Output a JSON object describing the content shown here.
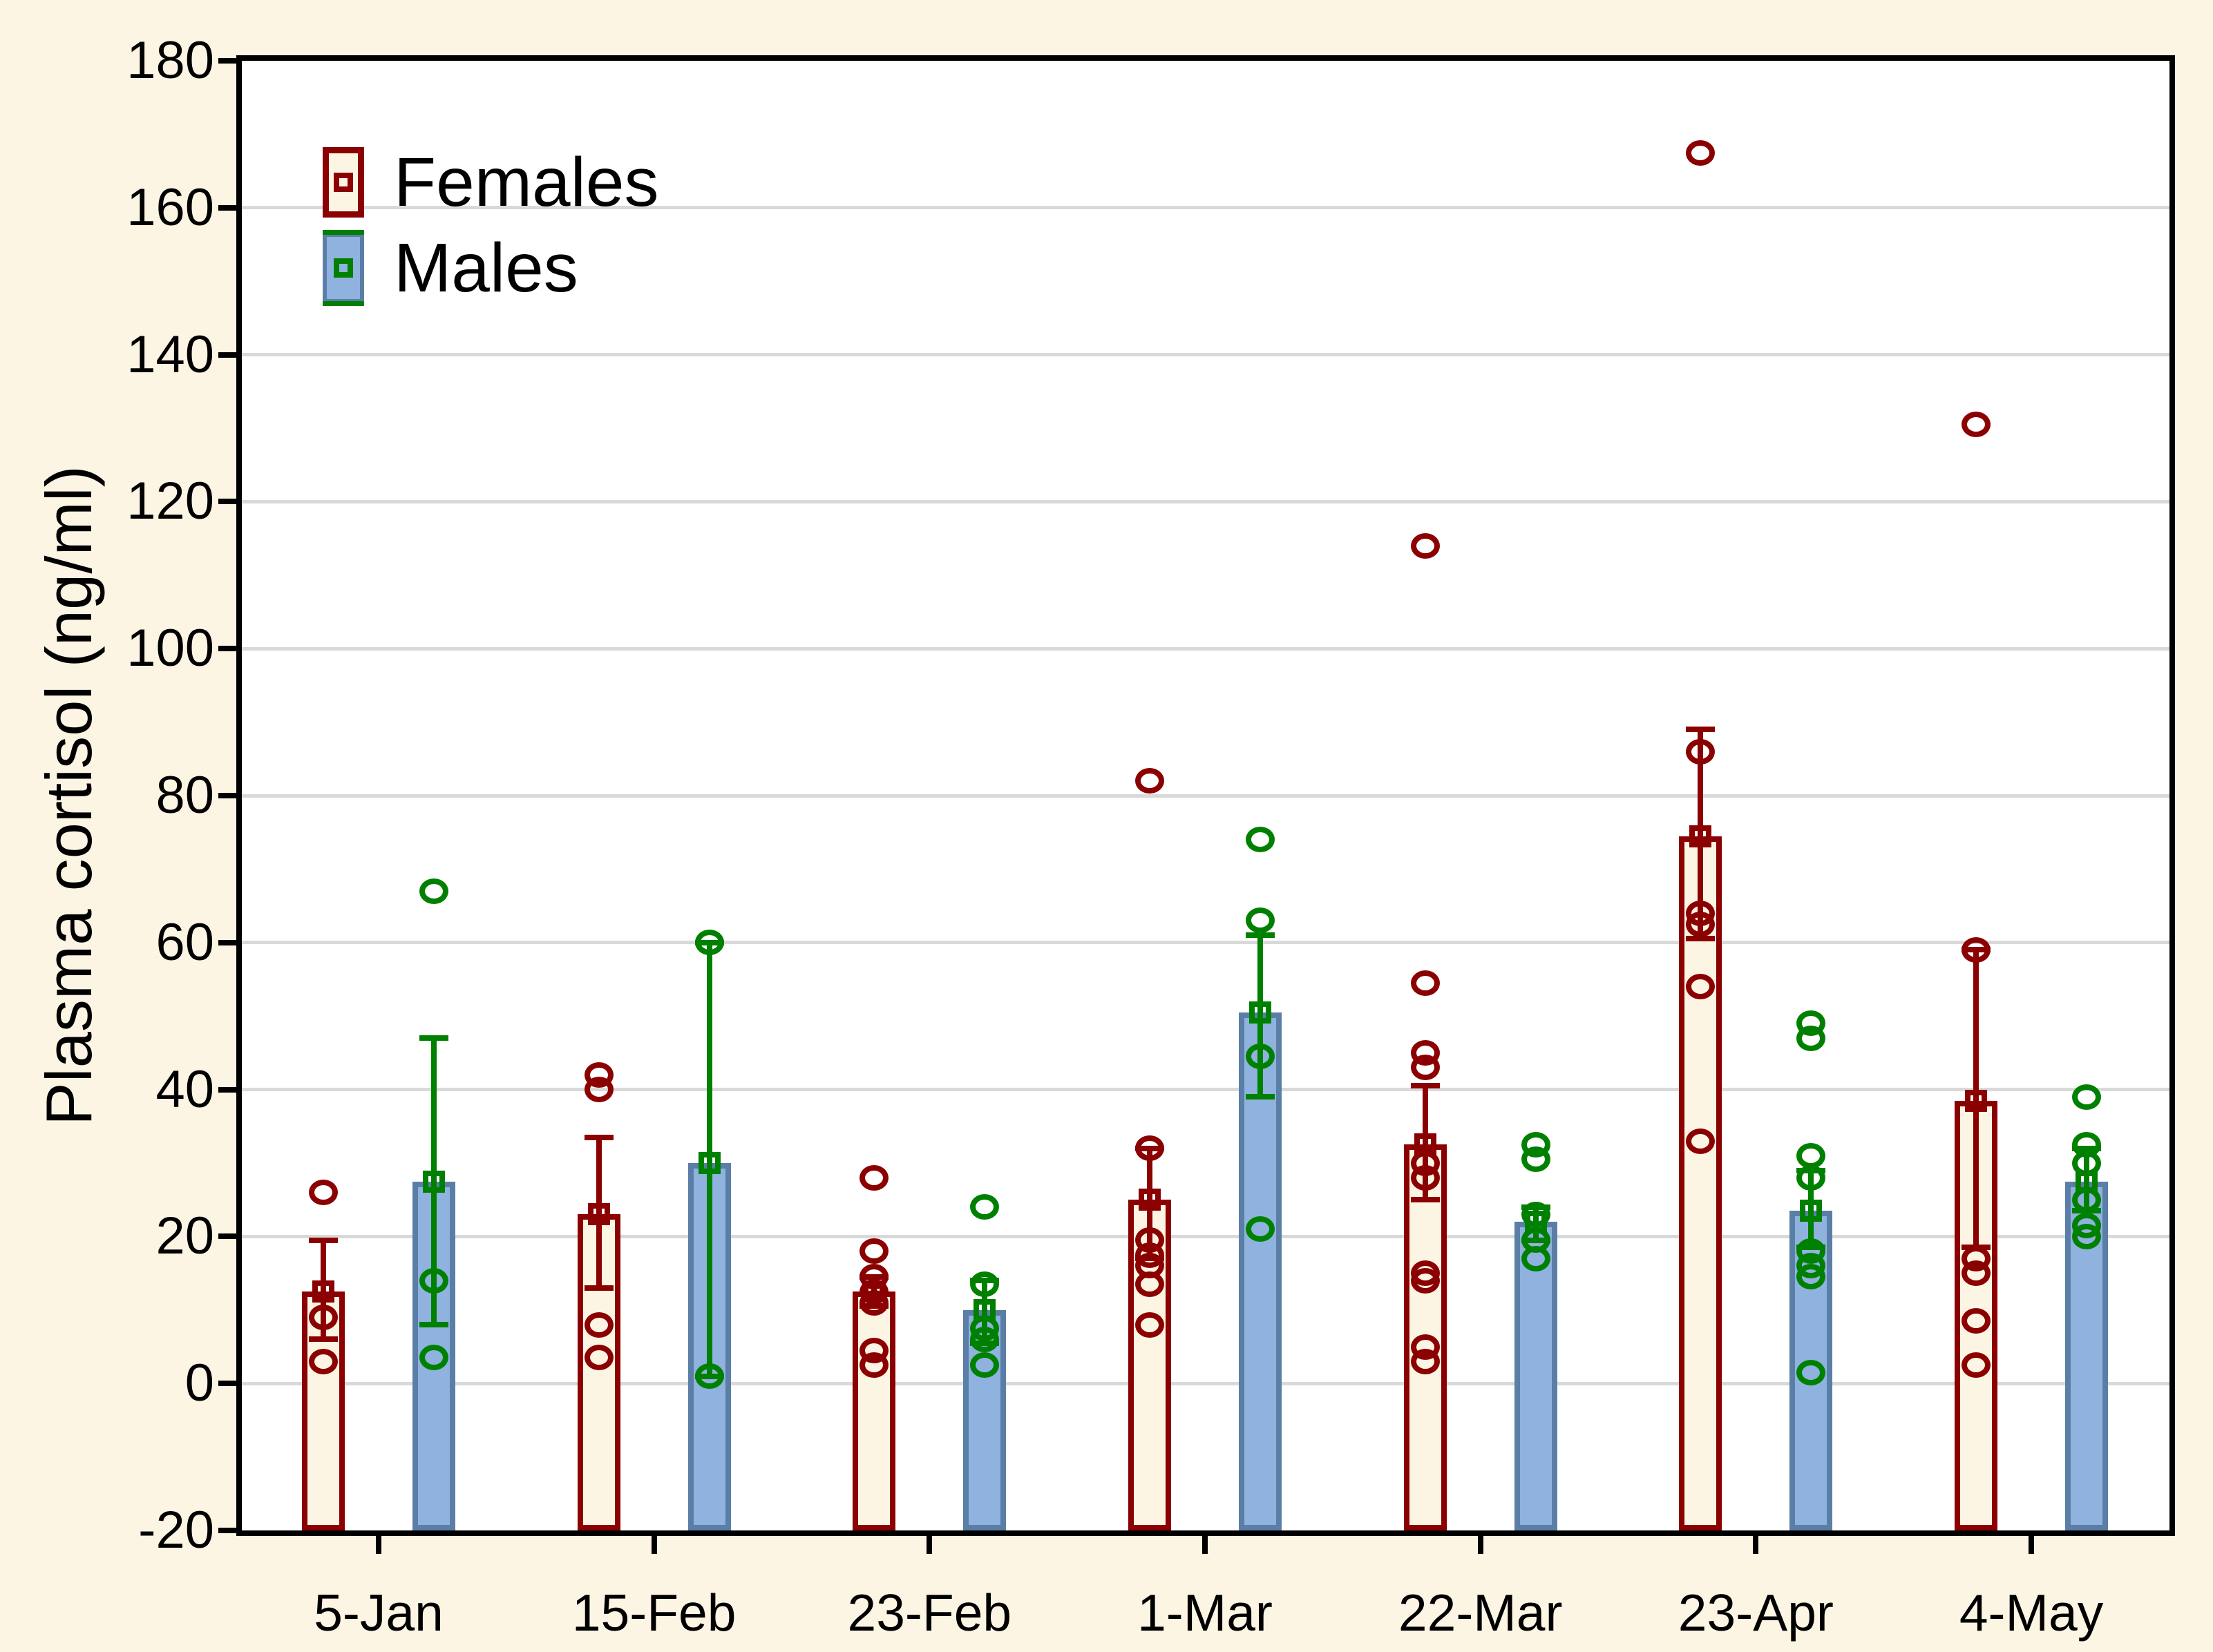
{
  "figure": {
    "background_color": "#FDF5E4",
    "plot_background_color": "#FFFFFF",
    "gridline_color": "#D9D9D9",
    "axis_color": "#000000"
  },
  "legend": {
    "females_label": "Females",
    "males_label": "Males"
  },
  "chart_data": {
    "type": "bar",
    "subtype": "grouped bars of mean with error bars and overlaid individual data points",
    "title": "",
    "xlabel": "",
    "ylabel": "Plasma cortisol (ng/ml)",
    "ylim": [
      -20,
      180
    ],
    "ytick_step": 20,
    "grid": "horizontal gridlines at every 20 units",
    "legend_position": "top-left inside plot",
    "categories": [
      "5-Jan",
      "15-Feb",
      "23-Feb",
      "1-Mar",
      "22-Mar",
      "23-Apr",
      "4-May"
    ],
    "series": [
      {
        "name": "Females",
        "marker": "open circle",
        "color": "#8B0000",
        "bar_fill": "#FDF5E4",
        "bar_stroke": "#8B0000",
        "means": [
          12.5,
          23,
          12.5,
          25,
          32.5,
          74.5,
          38.5
        ],
        "error_low": [
          6,
          13,
          10.5,
          17,
          25,
          60.5,
          18.5
        ],
        "error_high": [
          19.5,
          33.5,
          14.5,
          32,
          40.5,
          89,
          59
        ],
        "points": [
          [
            26,
            9,
            3
          ],
          [
            42,
            40,
            8,
            3.5
          ],
          [
            28,
            18,
            14.5,
            12.5,
            11,
            4.5,
            2.5
          ],
          [
            82,
            32,
            19.5,
            17.5,
            16,
            13.5,
            8
          ],
          [
            114,
            54.5,
            45,
            43,
            30,
            28,
            15,
            14,
            5,
            3
          ],
          [
            167.5,
            86,
            64,
            62.5,
            54,
            33
          ],
          [
            130.5,
            59,
            17,
            15,
            8.5,
            2.5
          ]
        ]
      },
      {
        "name": "Males",
        "marker": "open circle",
        "color": "#008000",
        "bar_fill": "#8FB2DE",
        "bar_stroke": "#5B7EA7",
        "means": [
          27.5,
          30,
          10,
          50.5,
          22,
          23.5,
          27.5
        ],
        "error_low": [
          8,
          1,
          5.5,
          39,
          19.5,
          18.5,
          23.5
        ],
        "error_high": [
          47,
          60,
          14,
          61,
          24,
          29,
          32
        ],
        "points": [
          [
            67,
            14,
            3.5
          ],
          [
            60,
            1
          ],
          [
            24,
            13.5,
            7.5,
            6,
            2.5
          ],
          [
            74,
            63,
            44.5,
            21
          ],
          [
            32.5,
            30.5,
            23,
            19.5,
            17
          ],
          [
            49,
            47,
            31,
            28,
            18,
            16,
            14.5,
            1.5
          ],
          [
            39,
            32.5,
            30,
            25,
            21.5,
            20
          ]
        ]
      }
    ]
  }
}
